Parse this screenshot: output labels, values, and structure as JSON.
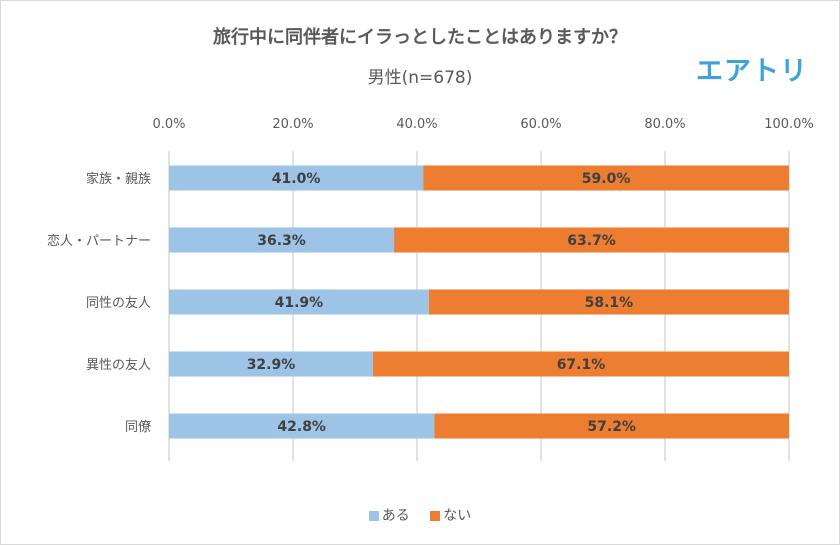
{
  "chart_data": {
    "type": "bar",
    "orientation": "horizontal-stacked-100",
    "title": "旅行中に同伴者にイラっとしたことはありますか？",
    "subtitle": "男性(n=678)",
    "categories": [
      "家族・親族",
      "恋人・パートナー",
      "同性の友人",
      "異性の友人",
      "同僚"
    ],
    "series": [
      {
        "name": "ある",
        "values": [
          41.0,
          36.3,
          41.9,
          32.9,
          42.8
        ],
        "color": "#9dc3e6"
      },
      {
        "name": "ない",
        "values": [
          59.0,
          63.7,
          58.1,
          67.1,
          57.2
        ],
        "color": "#ed7d31"
      }
    ],
    "xlim": [
      0,
      100
    ],
    "x_ticks": [
      "0.0%",
      "20.0%",
      "40.0%",
      "60.0%",
      "80.0%",
      "100.0%"
    ],
    "grid": true,
    "legend": "bottom"
  },
  "logo": "エアトリ"
}
